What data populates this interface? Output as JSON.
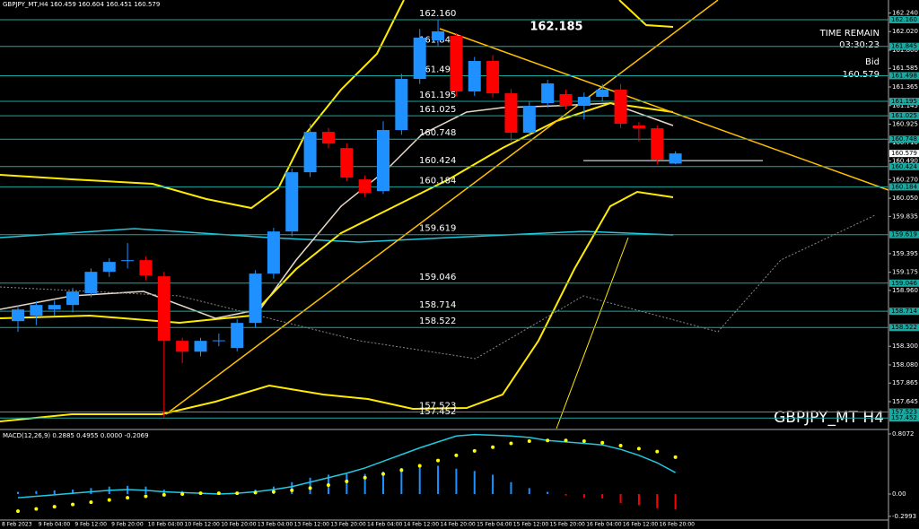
{
  "header": "GBPJPY_MT,H4 160.459 160.604 160.451 160.579",
  "big_price": "162.185",
  "time_remain_label": "TIME REMAIN",
  "time_remain": "03:30:23",
  "bid_label": "Bid",
  "bid": "160.579",
  "watermark": "GBPJPY_MT H4",
  "chart_data": {
    "type": "candlestick",
    "up_color": "#1e90ff",
    "down_color": "#ff0000",
    "level_color": "#1aa9a0",
    "categories": [
      "8 Feb 2023",
      null,
      "9 Feb 04:00",
      null,
      "9 Feb 12:00",
      null,
      "9 Feb 20:00",
      null,
      "10 Feb 04:00",
      null,
      "10 Feb 12:00",
      null,
      "10 Feb 20:00",
      null,
      "13 Feb 04:00",
      null,
      "13 Feb 12:00",
      null,
      "13 Feb 20:00",
      null,
      "14 Feb 04:00",
      null,
      "14 Feb 12:00",
      null,
      "14 Feb 20:00",
      null,
      "15 Feb 04:00",
      null,
      "15 Feb 12:00",
      null,
      "15 Feb 20:00",
      null,
      "16 Feb 04:00",
      null,
      "16 Feb 12:00",
      null,
      "16 Feb 20:00"
    ],
    "open": [
      158.597,
      158.661,
      158.735,
      158.788,
      158.926,
      159.18,
      159.307,
      159.318,
      159.127,
      158.364,
      158.236,
      158.364,
      158.279,
      158.576,
      159.159,
      159.657,
      160.357,
      160.834,
      160.643,
      160.272,
      160.134,
      160.856,
      161.46,
      161.916,
      161.969,
      161.312,
      161.672,
      161.29,
      160.824,
      161.174,
      161.28,
      161.142,
      161.248,
      161.333,
      160.909,
      160.877,
      160.459
    ],
    "high": [
      158.78,
      158.83,
      158.84,
      158.99,
      159.22,
      159.34,
      159.52,
      159.36,
      159.18,
      158.4,
      158.4,
      158.45,
      158.62,
      159.2,
      159.7,
      160.4,
      160.93,
      160.88,
      160.7,
      160.32,
      160.96,
      161.52,
      162.05,
      162.16,
      162,
      161.72,
      161.74,
      161.34,
      161.2,
      161.45,
      161.33,
      161.3,
      161.4,
      161.4,
      160.95,
      160.91,
      160.604
    ],
    "low": [
      158.47,
      158.55,
      158.66,
      158.7,
      158.88,
      159.12,
      159.22,
      159.08,
      157.462,
      158.1,
      158.18,
      158.3,
      158.24,
      158.52,
      159.1,
      159.6,
      160.3,
      160.64,
      160.25,
      160.06,
      160.1,
      160.8,
      161.4,
      161.85,
      161.26,
      161.26,
      161.24,
      160.72,
      160.78,
      161.12,
      161.1,
      160.98,
      161.2,
      160.88,
      160.72,
      160.45,
      160.451
    ],
    "close": [
      158.735,
      158.788,
      158.788,
      158.947,
      159.18,
      159.297,
      159.318,
      159.138,
      158.364,
      158.236,
      158.364,
      158.37,
      158.576,
      159.159,
      159.657,
      160.357,
      160.834,
      160.696,
      160.294,
      160.113,
      160.856,
      161.46,
      161.948,
      162.022,
      161.312,
      161.672,
      161.29,
      160.824,
      161.142,
      161.407,
      161.142,
      161.248,
      161.333,
      160.93,
      160.877,
      160.506,
      160.579
    ],
    "ylim": [
      157.327,
      162.393
    ],
    "yticks": [
      {
        "value": 162.24,
        "label": "162.240"
      },
      {
        "value": 162.02,
        "label": "162.020"
      },
      {
        "value": 161.8,
        "label": "161.800"
      },
      161.585,
      161.365,
      161.145,
      160.925,
      {
        "value": 160.71,
        "label": "160.710"
      },
      {
        "value": 160.49,
        "label": "160.490"
      },
      {
        "value": 160.27,
        "label": "160.270"
      },
      {
        "value": 160.05,
        "label": "160.050"
      },
      159.835,
      159.395,
      159.175,
      {
        "value": 158.96,
        "label": "158.960"
      },
      {
        "value": 158.3,
        "label": "158.300"
      },
      {
        "value": 158.08,
        "label": "158.080"
      },
      157.865,
      157.645
    ],
    "levels": [
      {
        "value": 162.16,
        "label": "162.160"
      },
      161.845,
      161.498,
      161.195,
      161.025,
      160.748,
      160.424,
      160.184,
      159.619,
      159.046,
      158.714,
      158.522,
      157.523,
      157.452
    ],
    "current": 160.579,
    "macd": {
      "label": "MACD(12,26,9) 0.2885 0.4955 0.0000 -0.2069",
      "ylim": [
        -0.349,
        0.843
      ],
      "yticks": [
        0.8072,
        {
          "value": 0,
          "label": "0.00"
        },
        -0.2993
      ],
      "histogram": [
        0.03,
        0.04,
        0.05,
        0.06,
        0.08,
        0.1,
        0.11,
        0.1,
        0.06,
        0.04,
        0.03,
        0.02,
        0.03,
        0.06,
        0.1,
        0.16,
        0.22,
        0.26,
        0.27,
        0.27,
        0.3,
        0.35,
        0.38,
        0.38,
        0.34,
        0.31,
        0.26,
        0.16,
        0.08,
        0.03,
        -0.02,
        -0.05,
        -0.06,
        -0.12,
        -0.15,
        -0.19,
        -0.2069
      ],
      "signal": [
        -0.23,
        -0.2,
        -0.17,
        -0.14,
        -0.11,
        -0.08,
        -0.05,
        -0.03,
        -0.01,
        0,
        0.01,
        0.01,
        0.01,
        0.02,
        0.03,
        0.05,
        0.08,
        0.12,
        0.17,
        0.22,
        0.27,
        0.32,
        0.38,
        0.45,
        0.52,
        0.58,
        0.63,
        0.68,
        0.71,
        0.72,
        0.72,
        0.71,
        0.69,
        0.65,
        0.61,
        0.57,
        0.4955
      ],
      "line": [
        -0.05,
        -0.03,
        -0.01,
        0.01,
        0.03,
        0.05,
        0.06,
        0.05,
        0.03,
        0.02,
        0.01,
        0,
        0.01,
        0.03,
        0.06,
        0.1,
        0.16,
        0.22,
        0.28,
        0.35,
        0.44,
        0.53,
        0.62,
        0.7,
        0.78,
        0.8,
        0.79,
        0.78,
        0.76,
        0.72,
        0.7,
        0.68,
        0.66,
        0.6,
        0.52,
        0.42,
        0.2885
      ],
      "up_color": "#1e90ff",
      "down_color": "#ff0000",
      "signal_color": "#ffff00",
      "line_color": "#20c8e0"
    }
  }
}
